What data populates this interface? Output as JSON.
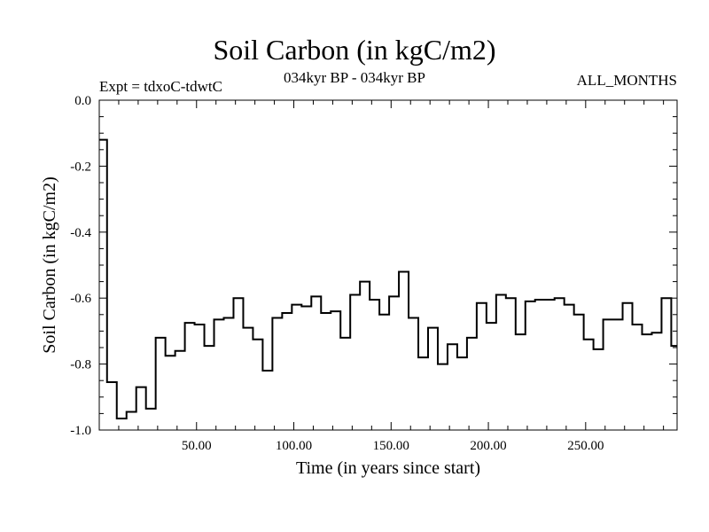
{
  "chart_data": {
    "type": "line",
    "title": "Soil Carbon (in kgC/m2)",
    "subtitle": "034kyr BP - 034kyr BP",
    "annotation_left": "Expt = tdxoC-tdwtC",
    "annotation_right": "ALL_MONTHS",
    "xlabel": "Time (in years since start)",
    "ylabel": "Soil Carbon (in kgC/m2)",
    "xlim": [
      0,
      297
    ],
    "ylim": [
      -1.0,
      0.0
    ],
    "x_ticks": [
      50,
      100,
      150,
      200,
      250
    ],
    "x_tick_labels": [
      "50.00",
      "100.00",
      "150.00",
      "200.00",
      "250.00"
    ],
    "y_ticks": [
      0.0,
      -0.2,
      -0.4,
      -0.6,
      -0.8,
      -1.0
    ],
    "y_tick_labels": [
      "0.0",
      "-0.2",
      "-0.4",
      "-0.6",
      "-0.8",
      "-1.0"
    ],
    "step_width": 4,
    "series": [
      {
        "x_start": [
          0,
          4,
          9,
          14,
          19,
          24,
          29,
          34,
          39,
          44,
          49,
          54,
          59,
          64,
          69,
          74,
          79,
          84,
          89,
          94,
          99,
          104,
          109,
          114,
          119,
          124,
          129,
          134,
          139,
          144,
          149,
          154,
          159,
          164,
          169,
          174,
          179,
          184,
          189,
          194,
          199,
          204,
          209,
          214,
          219,
          224,
          229,
          234,
          239,
          244,
          249,
          254,
          259,
          264,
          269,
          274,
          279,
          284,
          289,
          294
        ],
        "values": [
          -0.12,
          -0.855,
          -0.965,
          -0.945,
          -0.87,
          -0.935,
          -0.72,
          -0.775,
          -0.76,
          -0.675,
          -0.68,
          -0.745,
          -0.665,
          -0.66,
          -0.6,
          -0.69,
          -0.725,
          -0.82,
          -0.66,
          -0.645,
          -0.62,
          -0.625,
          -0.595,
          -0.645,
          -0.64,
          -0.72,
          -0.59,
          -0.55,
          -0.605,
          -0.65,
          -0.595,
          -0.52,
          -0.66,
          -0.78,
          -0.69,
          -0.8,
          -0.74,
          -0.78,
          -0.72,
          -0.615,
          -0.675,
          -0.59,
          -0.6,
          -0.71,
          -0.61,
          -0.605,
          -0.605,
          -0.6,
          -0.62,
          -0.65,
          -0.725,
          -0.755,
          -0.665,
          -0.665,
          -0.615,
          -0.68,
          -0.71,
          -0.705,
          -0.6,
          -0.745
        ]
      }
    ]
  }
}
